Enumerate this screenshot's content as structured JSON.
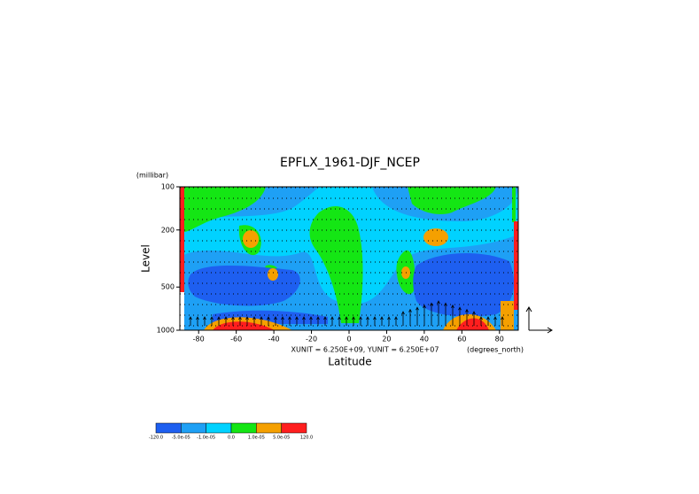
{
  "chart_data": {
    "type": "contour",
    "title": "EPFLX_1961-DJF_NCEP",
    "x_label": "Latitude",
    "y_label": "Level",
    "y_unit": "(millibar)",
    "x_unit": "(degrees_north)",
    "annotation": "XUNIT = 6.250E+09, YUNIT = 6.250E+07",
    "xlim": [
      -90,
      90
    ],
    "xticks": [
      -80,
      -60,
      -40,
      -20,
      0,
      20,
      40,
      60,
      80
    ],
    "ylim": [
      1000,
      100
    ],
    "yticks": [
      100,
      200,
      500,
      1000
    ],
    "y_log": true,
    "colorbar": {
      "colors": [
        "#1e5ff0",
        "#1ea0f5",
        "#00d2ff",
        "#14e614",
        "#f5a000",
        "#ff1e1e"
      ],
      "labels": [
        {
          "value": -120,
          "label": "-120.0"
        },
        {
          "value": -5e-05,
          "label": "-5.0e-05"
        },
        {
          "value": -1e-05,
          "label": "-1.0e-05"
        },
        {
          "value": 0,
          "label": "0.0"
        },
        {
          "value": 1e-05,
          "label": "1.0e-05"
        },
        {
          "value": 5e-05,
          "label": "5.0e-05"
        },
        {
          "value": 120,
          "label": "120.0"
        }
      ]
    }
  }
}
